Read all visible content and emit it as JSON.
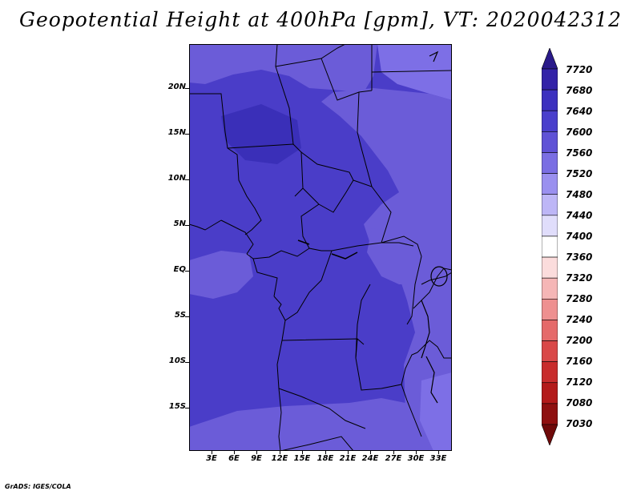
{
  "title": "Geopotential Height at 400hPa [gpm], VT: 2020042312",
  "credit": "GrADS: IGES/COLA",
  "map": {
    "variable": "Geopotential Height",
    "level": "400hPa",
    "units": "gpm",
    "valid_time": "2020042312",
    "lat_labels": [
      "20N",
      "15N",
      "10N",
      "5N",
      "EQ",
      "5S",
      "10S",
      "15S"
    ],
    "lon_labels": [
      "3E",
      "6E",
      "9E",
      "12E",
      "15E",
      "18E",
      "21E",
      "24E",
      "27E",
      "30E",
      "33E"
    ],
    "field_colors": {
      "band_7640_7680": "#3a2fb8",
      "band_7600_7640": "#4a3dc8",
      "band_7560_7600": "#6b5cd8",
      "band_7520_7560": "#7d6fe6"
    }
  },
  "colorbar": {
    "labels": [
      "7720",
      "7680",
      "7640",
      "7600",
      "7560",
      "7520",
      "7480",
      "7440",
      "7400",
      "7360",
      "7320",
      "7280",
      "7240",
      "7200",
      "7160",
      "7120",
      "7080",
      "7030"
    ],
    "colors": [
      "#2a1a8a",
      "#3322a8",
      "#3c30bf",
      "#4a3fcc",
      "#5f52d6",
      "#7a6ee3",
      "#9a90ef",
      "#bdb6f6",
      "#e0ddfb",
      "#ffffff",
      "#fbdcdc",
      "#f5b6b6",
      "#ee9090",
      "#e56a6a",
      "#d94848",
      "#c82c2c",
      "#b31a1a",
      "#8f1010",
      "#6f0a0a"
    ]
  }
}
